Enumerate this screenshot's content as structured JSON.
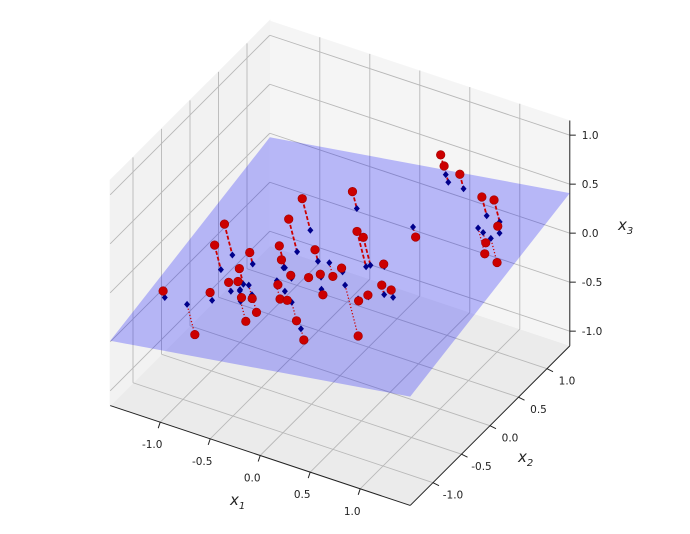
{
  "chart_data": {
    "type": "scatter3d",
    "title": "",
    "axes": {
      "x": {
        "label": "x",
        "label_sub": "1",
        "range": [
          -1.5,
          1.5
        ],
        "ticks": [
          "-1.0",
          "-0.5",
          "0.0",
          "0.5",
          "1.0"
        ]
      },
      "y": {
        "label": "x",
        "label_sub": "2",
        "range": [
          -1.4,
          1.4
        ],
        "ticks": [
          "-1.0",
          "-0.5",
          "0.0",
          "0.5",
          "1.0"
        ]
      },
      "z": {
        "label": "x",
        "label_sub": "3",
        "range": [
          -1.15,
          1.15
        ],
        "ticks": [
          "-1.0",
          "-0.5",
          "0.0",
          "0.5",
          "1.0"
        ]
      }
    },
    "grid": true,
    "plane": {
      "z_equals": "a*x1 + b*x2 + c",
      "a": 0.15,
      "b": 0.16,
      "c": -0.04,
      "color": "#0000ff",
      "alpha": 0.25
    },
    "points": {
      "color": "#cc0000",
      "marker": "circle",
      "xyz": [
        [
          -1.33,
          -0.77,
          -0.29
        ],
        [
          -1.07,
          -0.15,
          0.12
        ],
        [
          -1.06,
          -0.34,
          0.02
        ],
        [
          -1.03,
          -0.74,
          -0.65
        ],
        [
          -0.56,
          0.32,
          0.28
        ],
        [
          -0.53,
          0.03,
          0.25
        ],
        [
          -0.51,
          -0.17,
          0.1
        ],
        [
          -0.8,
          -0.18,
          -0.06
        ],
        [
          -0.28,
          0.71,
          0.22
        ],
        [
          0.17,
          0.0,
          0.38
        ],
        [
          0.21,
          0.04,
          0.31
        ],
        [
          -0.1,
          -0.17,
          -0.05
        ],
        [
          0.05,
          -0.06,
          0.0
        ],
        [
          0.38,
          -0.34,
          -0.06
        ],
        [
          0.25,
          -0.12,
          -0.59
        ],
        [
          0.1,
          -0.81,
          -0.28
        ],
        [
          0.56,
          -0.25,
          0.11
        ],
        [
          0.66,
          -0.26,
          0.1
        ],
        [
          0.45,
          -0.3,
          0.0
        ],
        [
          0.38,
          0.1,
          0.06
        ],
        [
          0.26,
          1.31,
          0.43
        ],
        [
          0.34,
          1.23,
          0.39
        ],
        [
          0.52,
          1.19,
          0.39
        ],
        [
          0.9,
          0.91,
          0.45
        ],
        [
          1.05,
          0.86,
          0.5
        ],
        [
          0.98,
          0.82,
          -0.05
        ],
        [
          1.16,
          0.72,
          -0.02
        ],
        [
          1.15,
          0.75,
          0.33
        ],
        [
          1.03,
          0.75,
          0.12
        ],
        [
          0.38,
          0.66,
          0.01
        ],
        [
          -0.73,
          -0.51,
          -0.14
        ],
        [
          -0.75,
          -0.45,
          -0.05
        ],
        [
          -0.7,
          -0.5,
          -0.3
        ],
        [
          -0.8,
          -0.55,
          -0.15
        ],
        [
          -0.65,
          -0.4,
          -0.35
        ],
        [
          -0.6,
          -0.6,
          -0.45
        ],
        [
          -0.55,
          -0.5,
          -0.4
        ],
        [
          -0.45,
          -0.3,
          -0.2
        ],
        [
          -0.4,
          -0.35,
          -0.3
        ],
        [
          -0.3,
          -0.4,
          -0.25
        ],
        [
          -0.35,
          -0.25,
          -0.1
        ],
        [
          -0.5,
          -0.15,
          -0.05
        ],
        [
          -0.2,
          -0.2,
          -0.1
        ],
        [
          -0.15,
          -0.5,
          -0.35
        ],
        [
          -0.9,
          -0.7,
          -0.2
        ],
        [
          -0.25,
          0.0,
          0.05
        ],
        [
          0.0,
          -0.3,
          -0.15
        ],
        [
          -0.1,
          0.05,
          -0.2
        ]
      ]
    },
    "projections": {
      "color": "#00008b",
      "marker": "diamond",
      "above_line": "dashed",
      "below_line": "dotted",
      "line_color": "#cc0000"
    }
  }
}
